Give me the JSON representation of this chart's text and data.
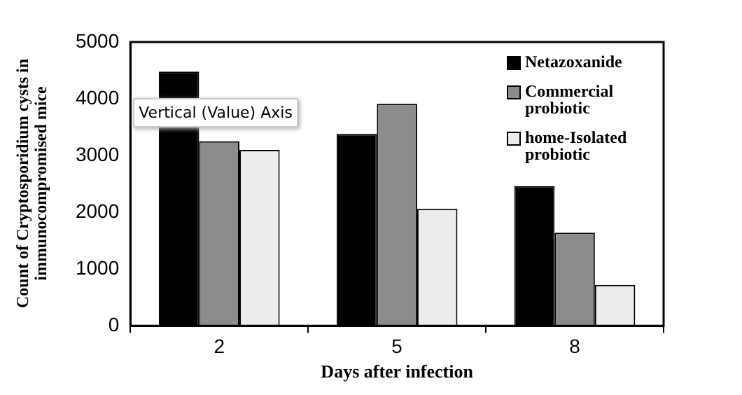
{
  "chart_data": {
    "type": "bar",
    "xlabel": "Days after infection",
    "ylabel": "Count of Cryptosporidium cysts in immunocompromised mice",
    "categories": [
      "2",
      "5",
      "8"
    ],
    "series": [
      {
        "name": "Netazoxanide",
        "color": "#000000",
        "values": [
          4480,
          3380,
          2460
        ]
      },
      {
        "name": "Commercial probiotic",
        "color": "#8c8c8c",
        "values": [
          3250,
          3910,
          1640
        ]
      },
      {
        "name": "home-Isolated probiotic",
        "color": "#ececec",
        "values": [
          3100,
          2060,
          720
        ]
      }
    ],
    "ylim": [
      0,
      5000
    ],
    "yticks": [
      0,
      1000,
      2000,
      3000,
      4000,
      5000
    ],
    "grid": false,
    "legend": "top right",
    "annotations": [
      "Vertical (Value) Axis"
    ]
  }
}
